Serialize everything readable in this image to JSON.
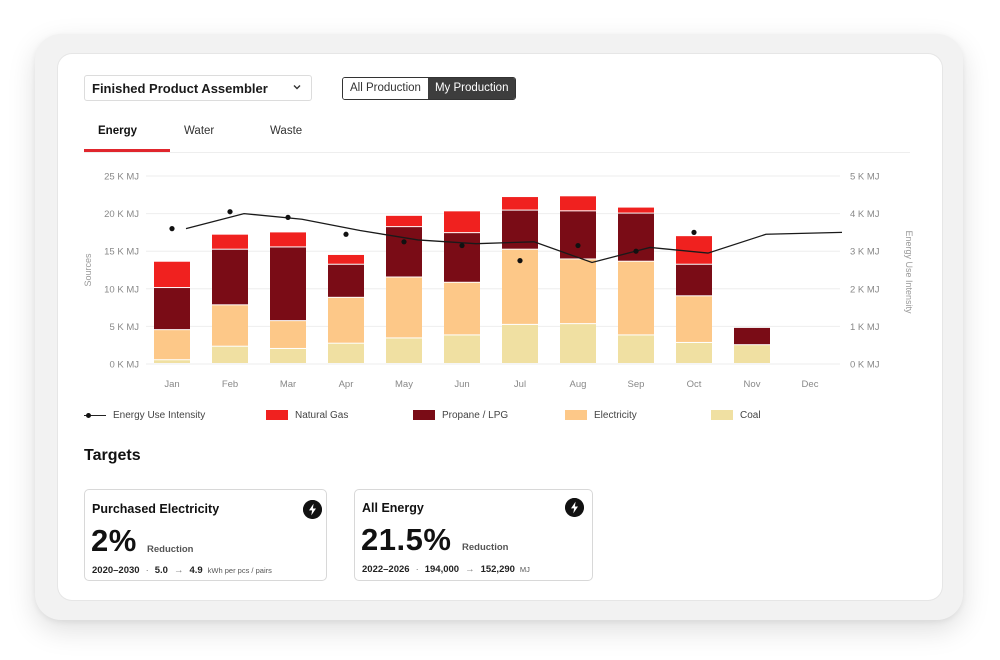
{
  "filter": {
    "selected": "Finished Product Assembler"
  },
  "scope": {
    "options": [
      "All Production",
      "My Production"
    ],
    "active": "My Production"
  },
  "tabs": [
    {
      "label": "Energy"
    },
    {
      "label": "Water"
    },
    {
      "label": "Waste"
    }
  ],
  "colors": {
    "natural_gas": "#f0211f",
    "propane": "#7a0c16",
    "electricity": "#fdc888",
    "coal": "#f0e0a2",
    "accent": "#e0262d"
  },
  "chart_data": {
    "type": "bar",
    "stacked": true,
    "categories": [
      "Jan",
      "Feb",
      "Mar",
      "Apr",
      "May",
      "Jun",
      "Jul",
      "Aug",
      "Sep",
      "Oct",
      "Nov",
      "Dec"
    ],
    "series": [
      {
        "name": "Coal",
        "values": [
          0.5,
          2.3,
          2.0,
          2.7,
          3.4,
          3.8,
          5.2,
          5.3,
          3.8,
          2.8,
          2.5,
          null
        ]
      },
      {
        "name": "Electricity",
        "values": [
          4.0,
          5.5,
          3.7,
          6.1,
          8.1,
          7.0,
          10.0,
          8.6,
          9.8,
          6.2,
          0,
          null
        ]
      },
      {
        "name": "Propane / LPG",
        "values": [
          5.6,
          7.4,
          9.8,
          4.4,
          6.7,
          6.6,
          5.2,
          6.4,
          6.4,
          4.2,
          2.3,
          null
        ]
      },
      {
        "name": "Natural Gas",
        "values": [
          3.5,
          2.0,
          2.0,
          1.3,
          1.5,
          2.9,
          1.8,
          2.0,
          0.8,
          3.8,
          0,
          null
        ]
      }
    ],
    "line": {
      "name": "Energy Use Intensity",
      "axis": "right",
      "values": [
        3.6,
        4.0,
        3.85,
        3.55,
        3.3,
        3.2,
        3.25,
        2.7,
        3.1,
        2.95,
        3.45
      ]
    },
    "points": {
      "axis": "right",
      "values": [
        3.6,
        4.05,
        3.9,
        3.45,
        3.25,
        3.15,
        2.75,
        3.15,
        3.0,
        3.5,
        null,
        null
      ]
    },
    "y_left": {
      "label": "Sources",
      "ylim": [
        0,
        25
      ],
      "ticks": [
        "0 K MJ",
        "5 K MJ",
        "10 K MJ",
        "15 K MJ",
        "20 K MJ",
        "25 K MJ"
      ]
    },
    "y_right": {
      "label": "Energy Use Intensity",
      "ylim": [
        0,
        5
      ],
      "ticks": [
        "0 K MJ",
        "1 K MJ",
        "2 K MJ",
        "3 K MJ",
        "4 K MJ",
        "5 K MJ"
      ]
    },
    "legend": [
      "Energy Use Intensity",
      "Natural Gas",
      "Propane / LPG",
      "Electricity",
      "Coal"
    ]
  },
  "targets": {
    "title": "Targets",
    "cards": [
      {
        "title": "Purchased Electricity",
        "value": "2%",
        "unit": "Reduction",
        "period": "2020–2030",
        "from": "5.0",
        "arrow": "→",
        "to": "4.9",
        "scale": "kWh per pcs / pairs"
      },
      {
        "title": "All Energy",
        "value": "21.5%",
        "unit": "Reduction",
        "period": "2022–2026",
        "from": "194,000",
        "arrow": "→",
        "to": "152,290",
        "scale": "MJ"
      }
    ]
  }
}
